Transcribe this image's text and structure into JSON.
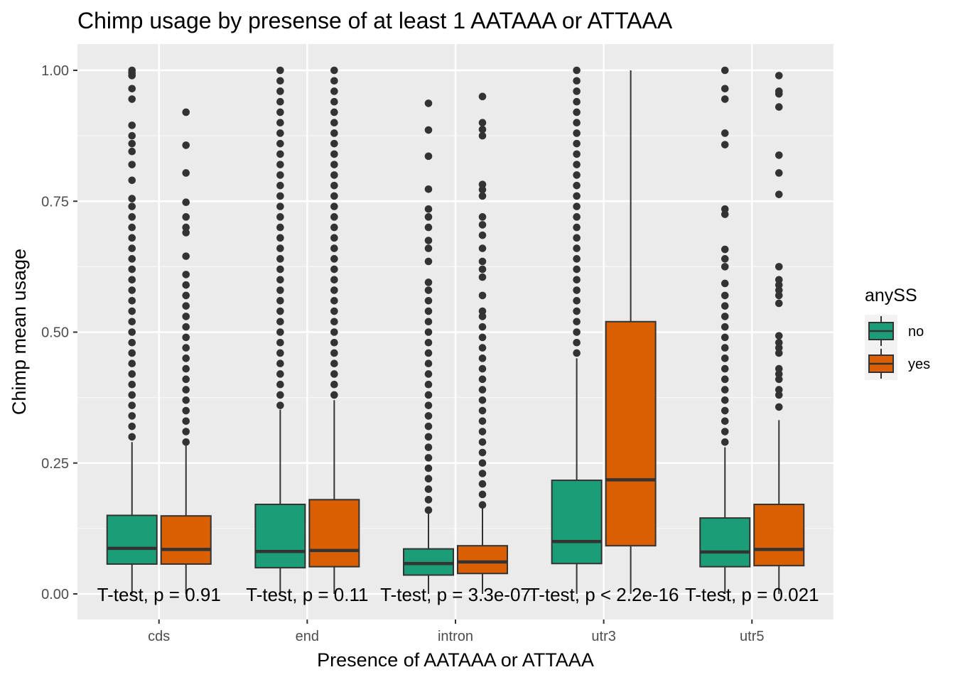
{
  "chart_data": {
    "type": "box",
    "title": "Chimp usage by presense of at least 1 AATAAA or ATTAAA",
    "xlabel": "Presence of AATAAA or ATTAAA",
    "ylabel": "Chimp mean usage",
    "ylim": [
      -0.05,
      1.04
    ],
    "yticks": [
      0.0,
      0.25,
      0.5,
      0.75,
      1.0
    ],
    "ytick_labels": [
      "0.00",
      "0.25",
      "0.50",
      "0.75",
      "1.00"
    ],
    "categories": [
      "cds",
      "end",
      "intron",
      "utr3",
      "utr5"
    ],
    "grid": true,
    "legend": {
      "title": "anySS",
      "position": "right",
      "entries": [
        {
          "label": "no",
          "color": "#1b9e77"
        },
        {
          "label": "yes",
          "color": "#d95f02"
        }
      ]
    },
    "series": [
      {
        "name": "no",
        "color": "#1b9e77",
        "boxes": [
          {
            "category": "cds",
            "whisker_low": 0.0,
            "q1": 0.057,
            "median": 0.087,
            "q3": 0.15,
            "whisker_high": 0.29,
            "outliers": [
              0.3,
              0.32,
              0.34,
              0.36,
              0.38,
              0.4,
              0.42,
              0.44,
              0.46,
              0.48,
              0.5,
              0.52,
              0.54,
              0.56,
              0.58,
              0.6,
              0.62,
              0.64,
              0.66,
              0.68,
              0.7,
              0.72,
              0.74,
              0.755,
              0.79,
              0.82,
              0.845,
              0.86,
              0.875,
              0.895,
              0.945,
              0.965,
              0.99,
              0.995,
              1.0
            ]
          },
          {
            "category": "end",
            "whisker_low": 0.0,
            "q1": 0.05,
            "median": 0.081,
            "q3": 0.171,
            "whisker_high": 0.352,
            "outliers": [
              0.36,
              0.38,
              0.4,
              0.42,
              0.44,
              0.46,
              0.48,
              0.5,
              0.52,
              0.54,
              0.56,
              0.58,
              0.6,
              0.62,
              0.64,
              0.66,
              0.68,
              0.7,
              0.72,
              0.74,
              0.76,
              0.78,
              0.8,
              0.82,
              0.84,
              0.86,
              0.88,
              0.9,
              0.92,
              0.94,
              0.96,
              0.98,
              1.0
            ]
          },
          {
            "category": "intron",
            "whisker_low": 0.0,
            "q1": 0.036,
            "median": 0.058,
            "q3": 0.086,
            "whisker_high": 0.155,
            "outliers": [
              0.16,
              0.18,
              0.2,
              0.22,
              0.24,
              0.26,
              0.28,
              0.3,
              0.32,
              0.34,
              0.36,
              0.38,
              0.4,
              0.42,
              0.44,
              0.46,
              0.48,
              0.5,
              0.52,
              0.54,
              0.56,
              0.58,
              0.595,
              0.635,
              0.66,
              0.675,
              0.7,
              0.72,
              0.735,
              0.773,
              0.836,
              0.886,
              0.937
            ]
          },
          {
            "category": "utr3",
            "whisker_low": 0.0,
            "q1": 0.058,
            "median": 0.1,
            "q3": 0.217,
            "whisker_high": 0.45,
            "outliers": [
              0.46,
              0.48,
              0.5,
              0.52,
              0.54,
              0.56,
              0.58,
              0.6,
              0.62,
              0.64,
              0.66,
              0.68,
              0.7,
              0.72,
              0.74,
              0.76,
              0.78,
              0.8,
              0.82,
              0.84,
              0.86,
              0.88,
              0.9,
              0.92,
              0.94,
              0.96,
              0.98,
              1.0
            ]
          },
          {
            "category": "utr5",
            "whisker_low": 0.0,
            "q1": 0.052,
            "median": 0.08,
            "q3": 0.145,
            "whisker_high": 0.28,
            "outliers": [
              0.29,
              0.31,
              0.33,
              0.35,
              0.37,
              0.39,
              0.41,
              0.43,
              0.45,
              0.47,
              0.49,
              0.51,
              0.53,
              0.55,
              0.57,
              0.593,
              0.625,
              0.64,
              0.658,
              0.725,
              0.735,
              0.858,
              0.88,
              0.945,
              0.965,
              1.0
            ]
          }
        ]
      },
      {
        "name": "yes",
        "color": "#d95f02",
        "boxes": [
          {
            "category": "cds",
            "whisker_low": 0.0,
            "q1": 0.057,
            "median": 0.085,
            "q3": 0.149,
            "whisker_high": 0.285,
            "outliers": [
              0.29,
              0.31,
              0.33,
              0.35,
              0.37,
              0.39,
              0.41,
              0.43,
              0.45,
              0.47,
              0.49,
              0.51,
              0.53,
              0.55,
              0.57,
              0.59,
              0.61,
              0.645,
              0.69,
              0.7,
              0.72,
              0.748,
              0.804,
              0.857,
              0.92
            ]
          },
          {
            "category": "end",
            "whisker_low": 0.0,
            "q1": 0.052,
            "median": 0.083,
            "q3": 0.18,
            "whisker_high": 0.37,
            "outliers": [
              0.38,
              0.4,
              0.42,
              0.44,
              0.46,
              0.48,
              0.5,
              0.52,
              0.54,
              0.56,
              0.58,
              0.6,
              0.62,
              0.64,
              0.66,
              0.68,
              0.7,
              0.72,
              0.74,
              0.76,
              0.78,
              0.8,
              0.82,
              0.84,
              0.86,
              0.88,
              0.9,
              0.92,
              0.94,
              0.96,
              0.98,
              1.0
            ]
          },
          {
            "category": "intron",
            "whisker_low": 0.0,
            "q1": 0.039,
            "median": 0.061,
            "q3": 0.092,
            "whisker_high": 0.168,
            "outliers": [
              0.17,
              0.19,
              0.21,
              0.23,
              0.25,
              0.27,
              0.29,
              0.31,
              0.33,
              0.35,
              0.37,
              0.39,
              0.41,
              0.43,
              0.45,
              0.47,
              0.49,
              0.51,
              0.53,
              0.54,
              0.57,
              0.605,
              0.62,
              0.635,
              0.66,
              0.685,
              0.705,
              0.72,
              0.76,
              0.772,
              0.782,
              0.875,
              0.887,
              0.9,
              0.95
            ]
          },
          {
            "category": "utr3",
            "whisker_low": 0.0,
            "q1": 0.092,
            "median": 0.218,
            "q3": 0.52,
            "whisker_high": 1.0,
            "outliers": []
          },
          {
            "category": "utr5",
            "whisker_low": 0.0,
            "q1": 0.054,
            "median": 0.085,
            "q3": 0.171,
            "whisker_high": 0.332,
            "outliers": [
              0.357,
              0.38,
              0.39,
              0.41,
              0.42,
              0.43,
              0.46,
              0.47,
              0.48,
              0.493,
              0.555,
              0.57,
              0.58,
              0.59,
              0.6,
              0.625,
              0.763,
              0.804,
              0.838,
              0.93,
              0.955,
              0.96,
              0.99
            ]
          }
        ]
      }
    ],
    "annotations": [
      {
        "category": "cds",
        "text": "T-test, p = 0.91"
      },
      {
        "category": "end",
        "text": "T-test, p = 0.11"
      },
      {
        "category": "intron",
        "text": "T-test, p = 3.3e-07"
      },
      {
        "category": "utr3",
        "text": "T-test, p < 2.2e-16"
      },
      {
        "category": "utr5",
        "text": "T-test, p = 0.021"
      }
    ]
  }
}
